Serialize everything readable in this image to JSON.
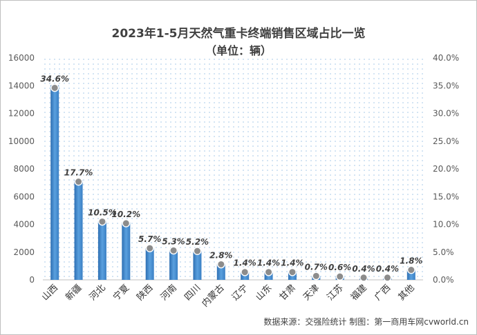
{
  "title": "2023年1-5月天然气重卡终端销售区域占比一览",
  "subtitle": "（单位：辆）",
  "source": "数据来源：交强险统计  制图：第一商用车网cvworld.cn",
  "chart_data": {
    "type": "bar",
    "categories": [
      "山西",
      "新疆",
      "河北",
      "宁夏",
      "陕西",
      "河南",
      "四川",
      "内蒙古",
      "辽宁",
      "山东",
      "甘肃",
      "天津",
      "江苏",
      "福建",
      "广西",
      "其他"
    ],
    "series": [
      {
        "axis": "left",
        "values": [
          14030,
          7180,
          4250,
          4140,
          2300,
          2150,
          2100,
          1130,
          560,
          560,
          560,
          280,
          240,
          160,
          160,
          730
        ]
      },
      {
        "axis": "right",
        "values": [
          34.6,
          17.7,
          10.5,
          10.2,
          5.7,
          5.3,
          5.2,
          2.8,
          1.4,
          1.4,
          1.4,
          0.7,
          0.6,
          0.4,
          0.4,
          1.8
        ]
      }
    ],
    "data_labels": [
      "34.6%",
      "17.7%",
      "10.5%",
      "10.2%",
      "5.7%",
      "5.3%",
      "5.2%",
      "2.8%",
      "1.4%",
      "1.4%",
      "1.4%",
      "0.7%",
      "0.6%",
      "0.4%",
      "0.4%",
      "1.8%"
    ],
    "ylim_left": [
      0,
      16000
    ],
    "yticks_left": [
      "0",
      "2000",
      "4000",
      "6000",
      "8000",
      "10000",
      "12000",
      "14000",
      "16000"
    ],
    "ylim_right": [
      0,
      40
    ],
    "yticks_right": [
      "0.0%",
      "5.0%",
      "10.0%",
      "15.0%",
      "20.0%",
      "25.0%",
      "30.0%",
      "35.0%",
      "40.0%"
    ],
    "colors": {
      "bar": "#4a90d2",
      "bar_dark": "#2e6fb3",
      "marker": "#8c8c8c",
      "plot_dots": "#9ec3e6"
    },
    "legend": "none",
    "grid": false
  }
}
